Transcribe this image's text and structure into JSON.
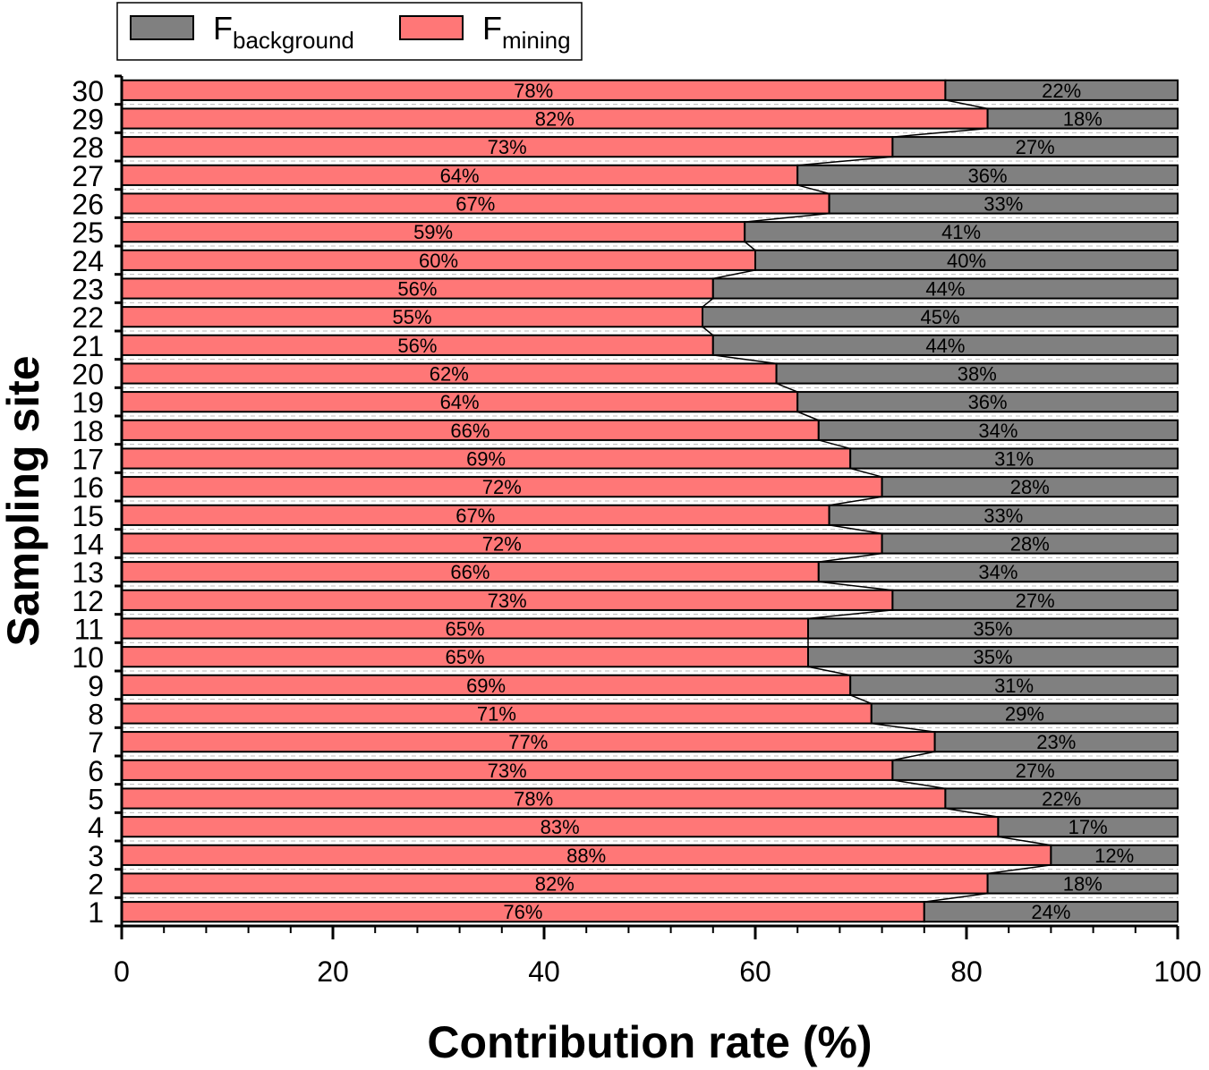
{
  "chart_data": {
    "type": "bar",
    "orientation": "horizontal",
    "stacked": true,
    "xlabel": "Contribution rate (%)",
    "ylabel": "Sampling site",
    "xlim": [
      0,
      100
    ],
    "x_ticks": [
      "0",
      "20",
      "40",
      "60",
      "80",
      "100"
    ],
    "categories": [
      "1",
      "2",
      "3",
      "4",
      "5",
      "6",
      "7",
      "8",
      "9",
      "10",
      "11",
      "12",
      "13",
      "14",
      "15",
      "16",
      "17",
      "18",
      "19",
      "20",
      "21",
      "22",
      "23",
      "24",
      "25",
      "26",
      "27",
      "28",
      "29",
      "30"
    ],
    "series": [
      {
        "name": "F_mining",
        "label_main": "F",
        "label_sub": "mining",
        "color": "#ff7777",
        "values": [
          76,
          82,
          88,
          83,
          78,
          73,
          77,
          71,
          69,
          65,
          65,
          73,
          66,
          72,
          67,
          72,
          69,
          66,
          64,
          62,
          56,
          55,
          56,
          60,
          59,
          67,
          64,
          73,
          82,
          78
        ]
      },
      {
        "name": "F_background",
        "label_main": "F",
        "label_sub": "background",
        "color": "#808080",
        "values": [
          24,
          18,
          12,
          17,
          22,
          27,
          23,
          29,
          31,
          35,
          35,
          27,
          34,
          28,
          33,
          28,
          31,
          34,
          36,
          38,
          44,
          45,
          44,
          40,
          41,
          33,
          36,
          27,
          18,
          22
        ]
      }
    ],
    "data_labels_suffix": "%",
    "legend_position": "top-left",
    "grid": false
  }
}
